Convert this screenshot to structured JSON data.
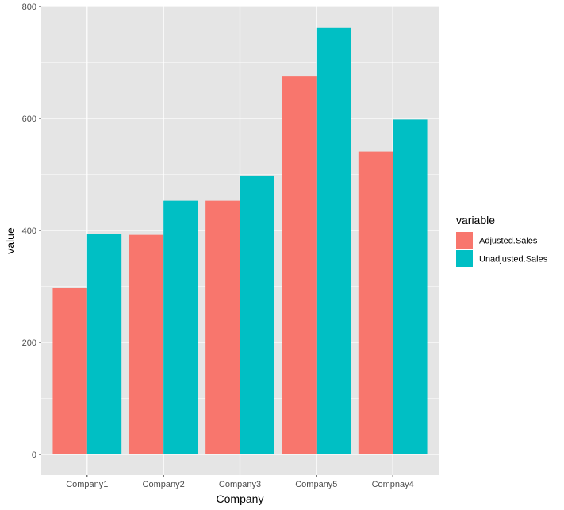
{
  "chart_data": {
    "type": "bar",
    "xlabel": "Company",
    "ylabel": "value",
    "categories": [
      "Company1",
      "Company2",
      "Company3",
      "Company5",
      "Compnay4"
    ],
    "series": [
      {
        "name": "Adjusted.Sales",
        "color": "#F8766D",
        "values": [
          297,
          392,
          453,
          675,
          541
        ]
      },
      {
        "name": "Unadjusted.Sales",
        "color": "#00BFC4",
        "values": [
          393,
          453,
          498,
          762,
          598
        ]
      }
    ],
    "ylim": [
      0,
      800
    ],
    "y_ticks": [
      0,
      200,
      400,
      600,
      800
    ],
    "grid": true,
    "panel_background": "#E5E5E5",
    "grid_color": "#FFFFFF",
    "legend": {
      "title": "variable",
      "position": "right"
    }
  }
}
